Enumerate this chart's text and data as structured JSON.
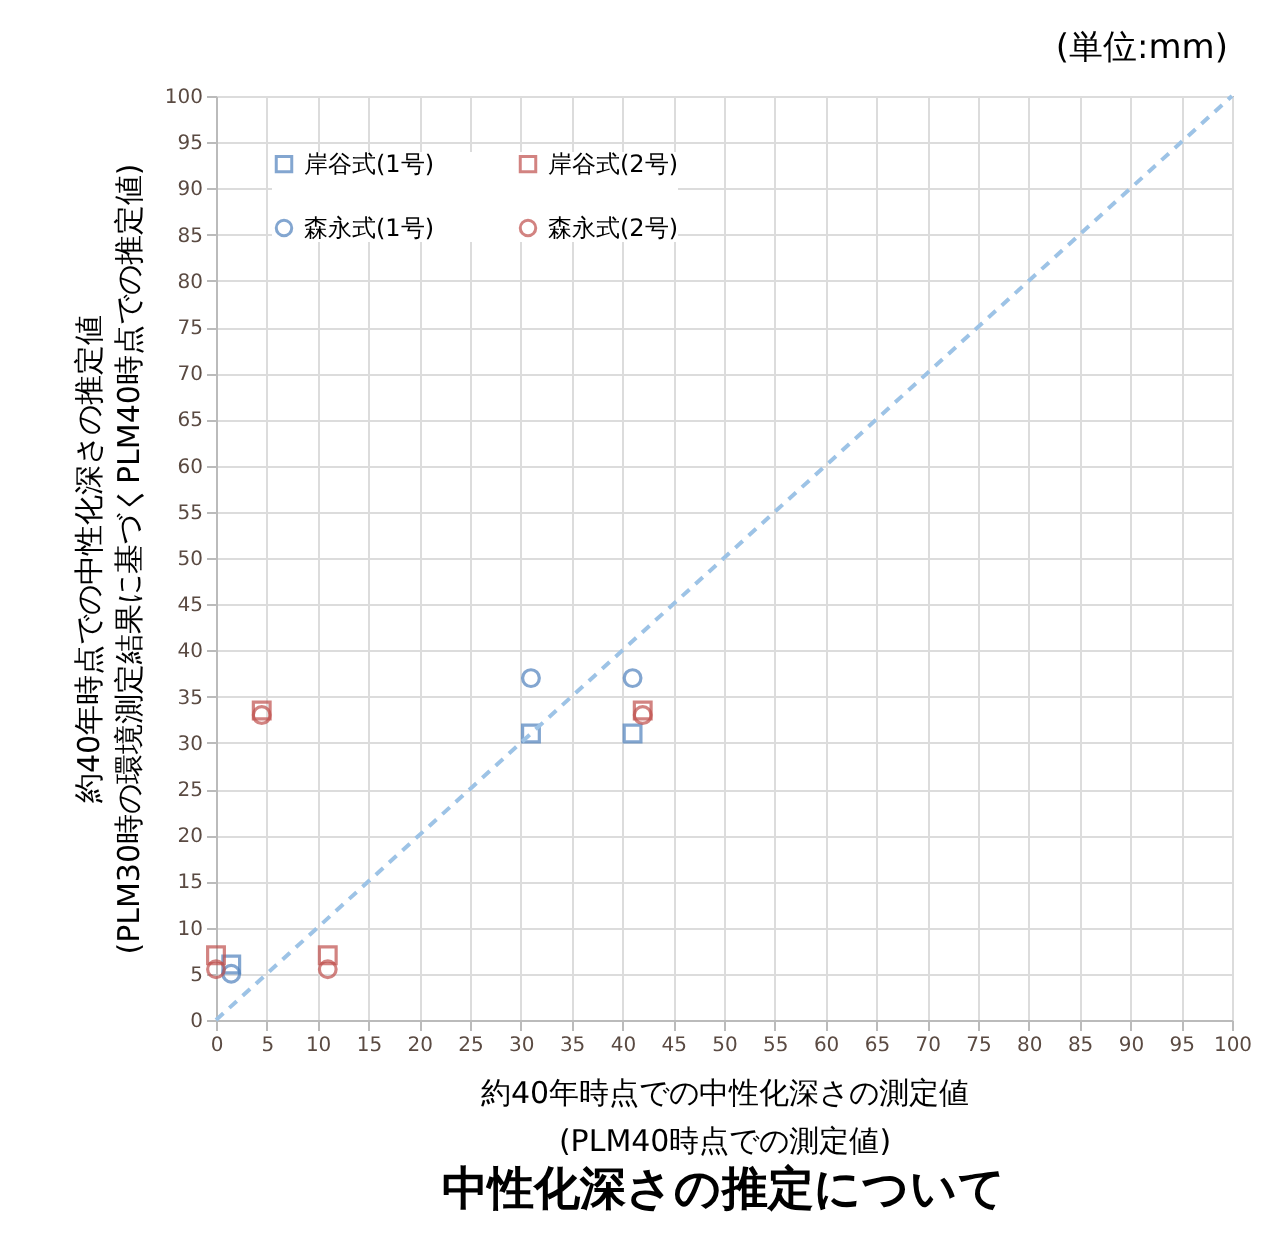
{
  "chart_data": {
    "type": "scatter",
    "title": "中性化深さの推定について",
    "xlabel": "約40年時点での中性化深さの測定値\n(PLM40時点での測定値)",
    "ylabel": "約40年時点での中性化深さの推定値\n(PLM30時の環境測定結果に基づくPLM40時点での推定値)",
    "annotations": [
      "(単位:mm)"
    ],
    "xlim": [
      0,
      100
    ],
    "ylim": [
      0,
      100
    ],
    "xticks": [
      0,
      5,
      10,
      15,
      20,
      25,
      30,
      35,
      40,
      45,
      50,
      55,
      60,
      65,
      70,
      75,
      80,
      85,
      90,
      95,
      100
    ],
    "yticks": [
      0,
      5,
      10,
      15,
      20,
      25,
      30,
      35,
      40,
      45,
      50,
      55,
      60,
      65,
      70,
      75,
      80,
      85,
      90,
      95,
      100
    ],
    "grid": true,
    "legend": "top left",
    "series": [
      {
        "name": "岸谷式(1号)",
        "color": "#4f81bd",
        "marker": "square",
        "x": [
          1.5,
          31,
          41
        ],
        "values": [
          6,
          31,
          31
        ]
      },
      {
        "name": "岸谷式(2号)",
        "color": "#c0504d",
        "marker": "square",
        "x": [
          0,
          4.5,
          11,
          42
        ],
        "values": [
          7,
          33.5,
          7,
          33.5
        ]
      },
      {
        "name": "森永式(1号)",
        "color": "#4f81bd",
        "marker": "circle",
        "x": [
          1.5,
          31,
          41
        ],
        "values": [
          5,
          37,
          37
        ]
      },
      {
        "name": "森永式(2号)",
        "color": "#c0504d",
        "marker": "circle",
        "x": [
          0,
          4.5,
          11,
          42
        ],
        "values": [
          5.5,
          33,
          5.5,
          33
        ]
      },
      {
        "type": "line",
        "color": "#9dc3e6",
        "line_style": "dashed",
        "marker": "none",
        "x": [
          0,
          100
        ],
        "values": [
          0,
          100
        ]
      }
    ]
  }
}
